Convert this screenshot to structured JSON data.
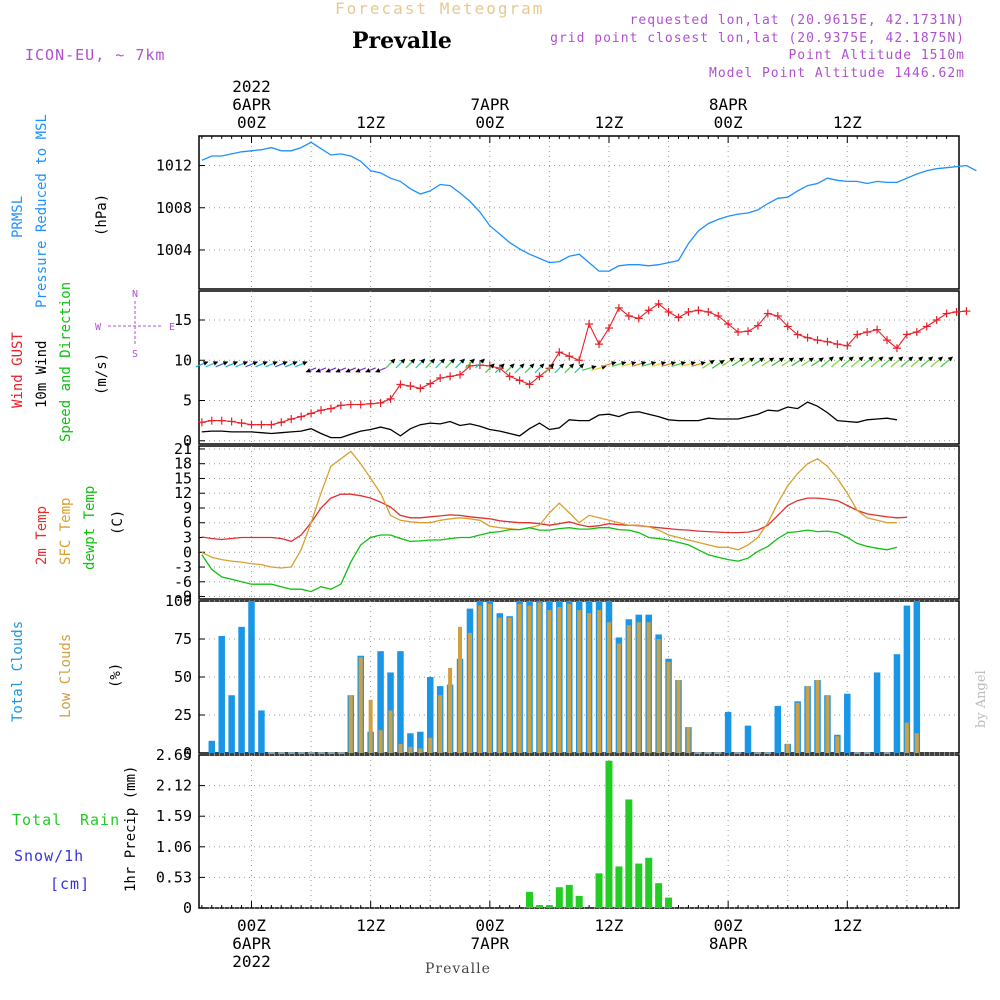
{
  "header": {
    "subtitle": "Forecast Meteogram",
    "location": "Prevalle",
    "model": "ICON-EU, ~ 7km",
    "requested": "requested lon,lat (20.9615E, 42.1731N)",
    "gridpoint": "grid point closest lon,lat (20.9375E, 42.1875N)",
    "point_alt": "Point Altitude 1510m",
    "model_alt": "Model Point Altitude 1446.62m",
    "footer": "Prevalle",
    "credit": "by Angel"
  },
  "time_axis": {
    "top_labels": [
      {
        "h": 0,
        "lines": [
          "2022",
          "6APR",
          "00Z"
        ]
      },
      {
        "h": 12,
        "lines": [
          "12Z"
        ]
      },
      {
        "h": 24,
        "lines": [
          "7APR",
          "00Z"
        ]
      },
      {
        "h": 36,
        "lines": [
          "12Z"
        ]
      },
      {
        "h": 48,
        "lines": [
          "8APR",
          "00Z"
        ]
      },
      {
        "h": 60,
        "lines": [
          "12Z"
        ]
      }
    ],
    "bottom_labels": [
      {
        "h": 0,
        "lines": [
          "00Z",
          "6APR",
          "2022"
        ]
      },
      {
        "h": 12,
        "lines": [
          "12Z"
        ]
      },
      {
        "h": 24,
        "lines": [
          "00Z",
          "7APR"
        ]
      },
      {
        "h": 36,
        "lines": [
          "12Z"
        ]
      },
      {
        "h": 48,
        "lines": [
          "00Z",
          "8APR"
        ]
      },
      {
        "h": 60,
        "lines": [
          "12Z"
        ]
      }
    ]
  },
  "panels": {
    "pressure": {
      "label1": "PRMSL",
      "label2": "Pressure Reduced to MSL",
      "unit": "(hPa)"
    },
    "wind": {
      "label_gust": "Wind GUST",
      "label_wind": "10m Wind",
      "label_dir": "Speed and Direction",
      "unit": "(m/s)",
      "compass": {
        "n": "N",
        "s": "S",
        "e": "E",
        "w": "W"
      }
    },
    "temp": {
      "label1": "2m Temp",
      "label2": "SFC Temp",
      "label3": "dewpt Temp",
      "unit": "(C)"
    },
    "cloud": {
      "label1": "Total Clouds",
      "label2": "Low Clouds",
      "unit": "(%)"
    },
    "precip": {
      "label1": "Total",
      "label2": "Rain",
      "label3": "Snow/1h",
      "label4": "[cm]",
      "unit": "1hr Precip (mm)"
    }
  },
  "colors": {
    "pressure": "#1e90ff",
    "gust": "#e8202a",
    "wind": "#000000",
    "t2m": "#e03030",
    "sfc": "#d9a030",
    "dewpt": "#10c010",
    "total_cloud": "#1a96e6",
    "low_cloud": "#d0a040",
    "rain": "#22cc22",
    "snow": "#3333dd",
    "header_purple": "#b050d0",
    "subtitle": "#e8c890"
  },
  "chart_data": [
    {
      "type": "line",
      "name": "PRMSL",
      "ylabel": "(hPa)",
      "ylim": [
        1000.3,
        1014.8
      ],
      "yticks": [
        1004,
        1008,
        1012
      ],
      "x_hours_start": -5,
      "x_step_hours": 1,
      "series": [
        {
          "name": "PRMSL",
          "values": [
            1012.5,
            1012.9,
            1012.9,
            1013.1,
            1013.3,
            1013.4,
            1013.5,
            1013.7,
            1013.4,
            1013.4,
            1013.7,
            1014.2,
            1013.6,
            1013.0,
            1013.1,
            1012.9,
            1012.4,
            1011.5,
            1011.3,
            1010.8,
            1010.5,
            1009.8,
            1009.3,
            1009.6,
            1010.2,
            1010.1,
            1009.4,
            1008.6,
            1007.6,
            1006.3,
            1005.5,
            1004.7,
            1004.1,
            1003.6,
            1003.2,
            1002.8,
            1002.9,
            1003.4,
            1003.6,
            1002.8,
            1002.0,
            1002.0,
            1002.5,
            1002.6,
            1002.6,
            1002.5,
            1002.6,
            1002.8,
            1003.0,
            1004.6,
            1005.8,
            1006.5,
            1006.9,
            1007.2,
            1007.4,
            1007.5,
            1007.8,
            1008.4,
            1008.9,
            1009.0,
            1009.6,
            1010.1,
            1010.3,
            1010.8,
            1010.6,
            1010.5,
            1010.5,
            1010.3,
            1010.5,
            1010.4,
            1010.4,
            1010.8,
            1011.2,
            1011.5,
            1011.7,
            1011.8,
            1011.9,
            1012.0,
            1011.5
          ]
        }
      ]
    },
    {
      "type": "line",
      "name": "Wind",
      "ylabel": "(m/s)",
      "ylim": [
        -0.4,
        18.6
      ],
      "yticks": [
        0,
        5,
        10,
        15
      ],
      "x_hours_start": -5,
      "x_step_hours": 1,
      "series": [
        {
          "name": "Wind GUST",
          "values": [
            2.3,
            2.5,
            2.5,
            2.4,
            2.2,
            2.0,
            2.0,
            2.0,
            2.3,
            2.7,
            3.0,
            3.4,
            3.8,
            4.0,
            4.4,
            4.5,
            4.5,
            4.6,
            4.7,
            5.2,
            7.0,
            6.8,
            6.5,
            7.1,
            7.8,
            8.0,
            8.2,
            9.3,
            9.4,
            9.3,
            9.0,
            8.0,
            7.5,
            7.0,
            8.0,
            9.0,
            11.0,
            10.5,
            10.0,
            14.5,
            12.0,
            14.0,
            16.5,
            15.5,
            15.2,
            16.2,
            17.0,
            16.0,
            15.3,
            16.0,
            16.2,
            16.0,
            15.5,
            14.5,
            13.5,
            13.6,
            14.3,
            15.8,
            15.5,
            14.2,
            13.2,
            12.8,
            12.5,
            12.3,
            12.0,
            11.8,
            13.2,
            13.5,
            13.8,
            12.5,
            11.5,
            13.2,
            13.5,
            14.2,
            15.0,
            15.8,
            16.0,
            16.1
          ]
        },
        {
          "name": "10m Wind",
          "values": [
            1.1,
            1.2,
            1.2,
            1.1,
            1.1,
            1.1,
            1.0,
            0.9,
            1.0,
            1.1,
            1.2,
            1.5,
            0.9,
            0.4,
            0.4,
            0.8,
            1.2,
            1.4,
            1.7,
            1.4,
            0.6,
            1.5,
            2.0,
            2.2,
            2.1,
            2.4,
            1.9,
            2.1,
            1.8,
            1.4,
            1.2,
            0.9,
            0.6,
            1.5,
            2.2,
            1.4,
            1.6,
            2.6,
            2.5,
            2.5,
            3.2,
            3.3,
            3.0,
            3.5,
            3.6,
            3.3,
            3.0,
            2.6,
            2.5,
            2.5,
            2.5,
            2.8,
            2.7,
            2.7,
            2.7,
            3.0,
            3.3,
            3.8,
            3.7,
            4.2,
            4.0,
            4.8,
            4.3,
            3.5,
            2.5,
            2.4,
            2.3,
            2.6,
            2.7,
            2.8,
            2.6
          ]
        }
      ]
    },
    {
      "type": "line",
      "name": "Temperature",
      "ylabel": "(C)",
      "ylim": [
        -9.5,
        21.6
      ],
      "yticks": [
        -9,
        -6,
        -3,
        0,
        3,
        6,
        9,
        12,
        15,
        18,
        21
      ],
      "x_hours_start": -5,
      "x_step_hours": 1,
      "series": [
        {
          "name": "2m Temp",
          "values": [
            3.1,
            2.8,
            2.6,
            2.8,
            3.0,
            3.0,
            3.0,
            3.0,
            2.8,
            2.2,
            3.5,
            6.0,
            9.0,
            11.0,
            11.8,
            11.8,
            11.5,
            11.0,
            10.2,
            9.2,
            7.5,
            7.0,
            7.0,
            7.2,
            7.4,
            7.6,
            7.5,
            7.2,
            7.0,
            6.8,
            6.4,
            6.2,
            6.0,
            6.0,
            5.8,
            5.5,
            5.8,
            6.2,
            5.6,
            5.2,
            5.4,
            5.8,
            5.6,
            5.5,
            5.4,
            5.2,
            5.0,
            4.8,
            4.6,
            4.5,
            4.3,
            4.2,
            4.1,
            4.0,
            4.0,
            4.1,
            4.5,
            5.5,
            7.5,
            9.5,
            10.5,
            11.0,
            11.0,
            10.8,
            10.5,
            9.5,
            8.5,
            7.8,
            7.5,
            7.2,
            7.0,
            7.1
          ]
        },
        {
          "name": "SFC Temp",
          "values": [
            0.0,
            -1.0,
            -1.5,
            -1.8,
            -2.0,
            -2.3,
            -2.5,
            -3.0,
            -3.2,
            -3.0,
            0.5,
            6.0,
            12.0,
            17.5,
            19.0,
            20.5,
            18.0,
            15.0,
            12.0,
            7.5,
            6.5,
            6.2,
            6.0,
            6.0,
            6.5,
            6.8,
            7.0,
            6.8,
            6.5,
            5.3,
            5.0,
            4.8,
            4.6,
            5.0,
            5.5,
            8.0,
            10.0,
            8.0,
            6.0,
            7.5,
            7.0,
            6.5,
            6.0,
            5.5,
            5.5,
            5.2,
            4.5,
            3.5,
            3.0,
            2.5,
            2.0,
            1.5,
            1.0,
            1.0,
            0.5,
            1.5,
            3.0,
            6.0,
            10.0,
            13.5,
            16.0,
            18.0,
            19.0,
            17.5,
            15.0,
            12.0,
            8.5,
            7.0,
            6.5,
            6.0,
            6.0
          ]
        },
        {
          "name": "dewpt Temp",
          "values": [
            -0.5,
            -3.5,
            -5.0,
            -5.5,
            -6.0,
            -6.5,
            -6.5,
            -6.5,
            -7.0,
            -7.5,
            -7.5,
            -8.0,
            -7.0,
            -7.5,
            -6.5,
            -2.0,
            1.5,
            3.0,
            3.5,
            3.5,
            2.8,
            2.2,
            2.3,
            2.5,
            2.5,
            2.8,
            3.0,
            3.0,
            3.5,
            4.0,
            4.2,
            4.6,
            4.6,
            5.0,
            4.5,
            4.5,
            4.8,
            5.0,
            4.7,
            4.7,
            5.0,
            5.0,
            4.6,
            4.5,
            4.0,
            3.0,
            2.8,
            2.5,
            2.0,
            1.5,
            0.5,
            -0.5,
            -1.0,
            -1.5,
            -1.8,
            -1.2,
            0.2,
            1.2,
            2.8,
            4.0,
            4.2,
            4.5,
            4.2,
            4.3,
            4.0,
            3.0,
            1.8,
            1.2,
            0.8,
            0.5,
            1.0
          ]
        }
      ]
    },
    {
      "type": "bar",
      "name": "Clouds",
      "ylabel": "(%)",
      "ylim": [
        0,
        100
      ],
      "yticks": [
        0,
        25,
        50,
        75,
        100
      ],
      "x_hours_start": -4,
      "x_step_hours": 1,
      "series": [
        {
          "name": "Total Clouds",
          "values": [
            8,
            77,
            38,
            83,
            100,
            28,
            0,
            0,
            0,
            0,
            0,
            0,
            0,
            0,
            38,
            64,
            14,
            67,
            53,
            67,
            13,
            14,
            50,
            44,
            45,
            62,
            95,
            100,
            100,
            92,
            90,
            100,
            100,
            100,
            100,
            100,
            100,
            100,
            100,
            100,
            100,
            76,
            88,
            91,
            91,
            78,
            62,
            48,
            17,
            0,
            0,
            0,
            27,
            0,
            18,
            0,
            0,
            31,
            6,
            34,
            44,
            48,
            38,
            12,
            39,
            0,
            0,
            53,
            0,
            65,
            97,
            100
          ]
        },
        {
          "name": "Low Clouds",
          "values": [
            0,
            0,
            0,
            0,
            0,
            0,
            0,
            0,
            0,
            0,
            0,
            0,
            0,
            0,
            38,
            63,
            35,
            15,
            28,
            6,
            4,
            3,
            10,
            38,
            56,
            83,
            79,
            97,
            98,
            89,
            89,
            98,
            97,
            99,
            94,
            96,
            98,
            94,
            92,
            94,
            86,
            72,
            84,
            86,
            86,
            75,
            60,
            48,
            17,
            0,
            0,
            0,
            0,
            0,
            0,
            0,
            0,
            0,
            6,
            33,
            44,
            48,
            38,
            11,
            0,
            0,
            0,
            0,
            0,
            0,
            20,
            13
          ]
        }
      ]
    },
    {
      "type": "bar",
      "name": "Precipitation",
      "ylabel": "1hr Precip (mm)",
      "ylim": [
        0,
        2.65
      ],
      "yticks": [
        0,
        0.53,
        1.06,
        1.59,
        2.12,
        2.65
      ],
      "bars": [
        {
          "h": 28,
          "value": 0.28
        },
        {
          "h": 29,
          "value": 0.05
        },
        {
          "h": 30,
          "value": 0.05
        },
        {
          "h": 31,
          "value": 0.36
        },
        {
          "h": 32,
          "value": 0.4
        },
        {
          "h": 33,
          "value": 0.21
        },
        {
          "h": 35,
          "value": 0.6
        },
        {
          "h": 36,
          "value": 2.55
        },
        {
          "h": 37,
          "value": 0.72
        },
        {
          "h": 38,
          "value": 1.88
        },
        {
          "h": 39,
          "value": 0.77
        },
        {
          "h": 40,
          "value": 0.87
        },
        {
          "h": 41,
          "value": 0.43
        },
        {
          "h": 42,
          "value": 0.18
        }
      ]
    }
  ]
}
